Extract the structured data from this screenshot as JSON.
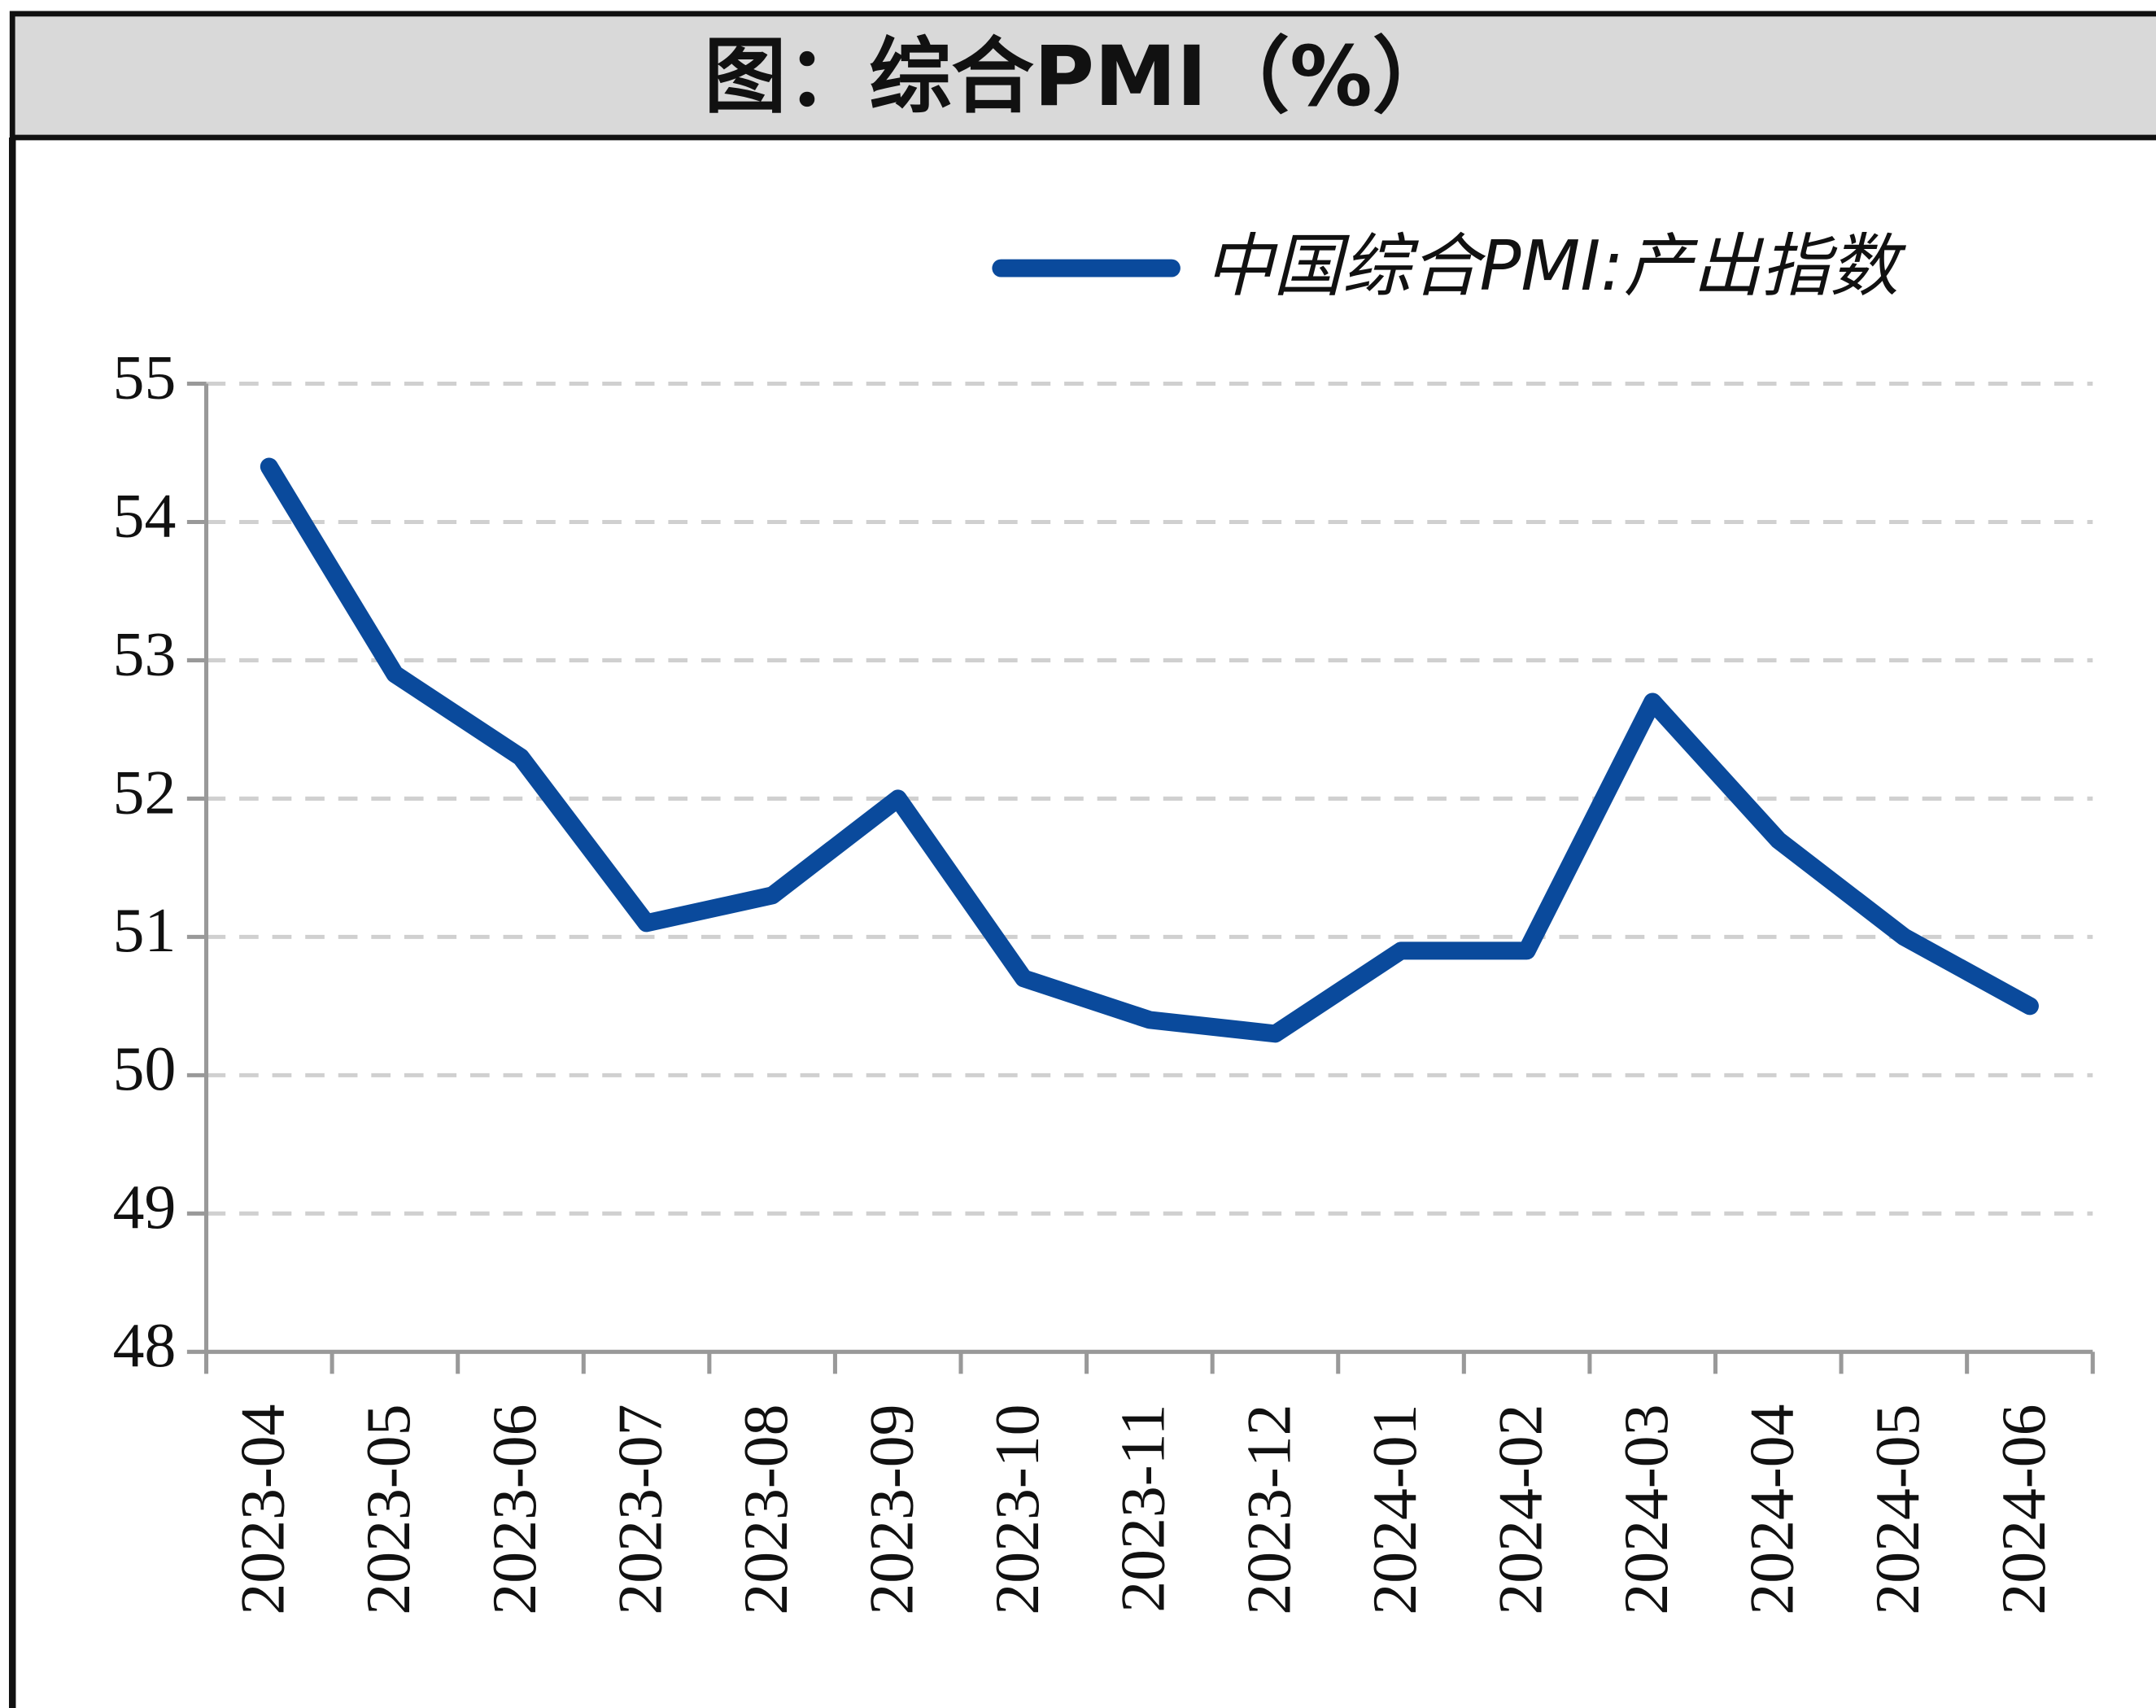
{
  "chart_data": {
    "type": "line",
    "title": "图：综合PMI（%）",
    "categories": [
      "2023-04",
      "2023-05",
      "2023-06",
      "2023-07",
      "2023-08",
      "2023-09",
      "2023-10",
      "2023-11",
      "2023-12",
      "2024-01",
      "2024-02",
      "2024-03",
      "2024-04",
      "2024-05",
      "2024-06"
    ],
    "series": [
      {
        "name": "中国综合PMI:产出指数",
        "color": "#0a4a9c",
        "values": [
          54.4,
          52.9,
          52.3,
          51.1,
          51.3,
          52.0,
          50.7,
          50.4,
          50.3,
          50.9,
          50.9,
          52.7,
          51.7,
          51.0,
          50.5
        ]
      }
    ],
    "ylim": [
      48,
      55
    ],
    "yticks": [
      48,
      49,
      50,
      51,
      52,
      53,
      54,
      55
    ],
    "grid": true,
    "legend": "top-right"
  }
}
